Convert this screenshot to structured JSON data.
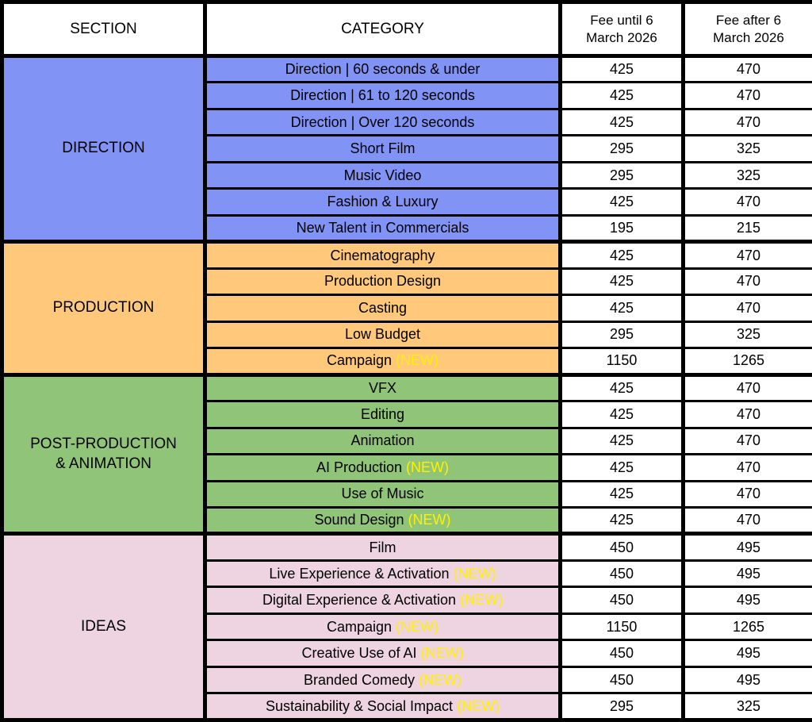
{
  "header": {
    "section": "SECTION",
    "category": "CATEGORY",
    "fee_until": "Fee until 6\nMarch 2026",
    "fee_after": "Fee after 6\nMarch 2026"
  },
  "new_badge_label": "(NEW)",
  "colors": {
    "border": "#000000",
    "header_bg": "#FFFFFF",
    "fee_cell_bg": "#FFFFFF",
    "new_badge": "#FFF100",
    "direction": "#8193F5",
    "production": "#FFC87B",
    "post_production_animation": "#90C478",
    "ideas": "#EED3E0"
  },
  "sections": [
    {
      "name": "DIRECTION",
      "color": "#8193F5",
      "rows": [
        {
          "category": "Direction | 60 seconds & under",
          "new": false,
          "fee_until": "425",
          "fee_after": "470"
        },
        {
          "category": "Direction | 61 to 120 seconds",
          "new": false,
          "fee_until": "425",
          "fee_after": "470"
        },
        {
          "category": "Direction | Over 120 seconds",
          "new": false,
          "fee_until": "425",
          "fee_after": "470"
        },
        {
          "category": "Short Film",
          "new": false,
          "fee_until": "295",
          "fee_after": "325"
        },
        {
          "category": "Music Video",
          "new": false,
          "fee_until": "295",
          "fee_after": "325"
        },
        {
          "category": "Fashion & Luxury",
          "new": false,
          "fee_until": "425",
          "fee_after": "470"
        },
        {
          "category": "New Talent in Commercials",
          "new": false,
          "fee_until": "195",
          "fee_after": "215"
        }
      ]
    },
    {
      "name": "PRODUCTION",
      "color": "#FFC87B",
      "rows": [
        {
          "category": "Cinematography",
          "new": false,
          "fee_until": "425",
          "fee_after": "470"
        },
        {
          "category": "Production Design",
          "new": false,
          "fee_until": "425",
          "fee_after": "470"
        },
        {
          "category": "Casting",
          "new": false,
          "fee_until": "425",
          "fee_after": "470"
        },
        {
          "category": "Low Budget",
          "new": false,
          "fee_until": "295",
          "fee_after": "325"
        },
        {
          "category": "Campaign",
          "new": true,
          "fee_until": "1150",
          "fee_after": "1265"
        }
      ]
    },
    {
      "name": "POST-PRODUCTION\n& ANIMATION",
      "color": "#90C478",
      "rows": [
        {
          "category": "VFX",
          "new": false,
          "fee_until": "425",
          "fee_after": "470"
        },
        {
          "category": "Editing",
          "new": false,
          "fee_until": "425",
          "fee_after": "470"
        },
        {
          "category": "Animation",
          "new": false,
          "fee_until": "425",
          "fee_after": "470"
        },
        {
          "category": "AI Production",
          "new": true,
          "fee_until": "425",
          "fee_after": "470"
        },
        {
          "category": "Use of Music",
          "new": false,
          "fee_until": "425",
          "fee_after": "470"
        },
        {
          "category": "Sound Design",
          "new": true,
          "fee_until": "425",
          "fee_after": "470"
        }
      ]
    },
    {
      "name": "IDEAS",
      "color": "#EED3E0",
      "rows": [
        {
          "category": "Film",
          "new": false,
          "fee_until": "450",
          "fee_after": "495"
        },
        {
          "category": "Live Experience & Activation",
          "new": true,
          "fee_until": "450",
          "fee_after": "495"
        },
        {
          "category": "Digital Experience & Activation",
          "new": true,
          "fee_until": "450",
          "fee_after": "495"
        },
        {
          "category": "Campaign",
          "new": true,
          "fee_until": "1150",
          "fee_after": "1265"
        },
        {
          "category": "Creative Use of AI",
          "new": true,
          "fee_until": "450",
          "fee_after": "495"
        },
        {
          "category": "Branded Comedy",
          "new": true,
          "fee_until": "450",
          "fee_after": "495"
        },
        {
          "category": "Sustainability & Social Impact",
          "new": true,
          "fee_until": "295",
          "fee_after": "325"
        }
      ]
    }
  ]
}
